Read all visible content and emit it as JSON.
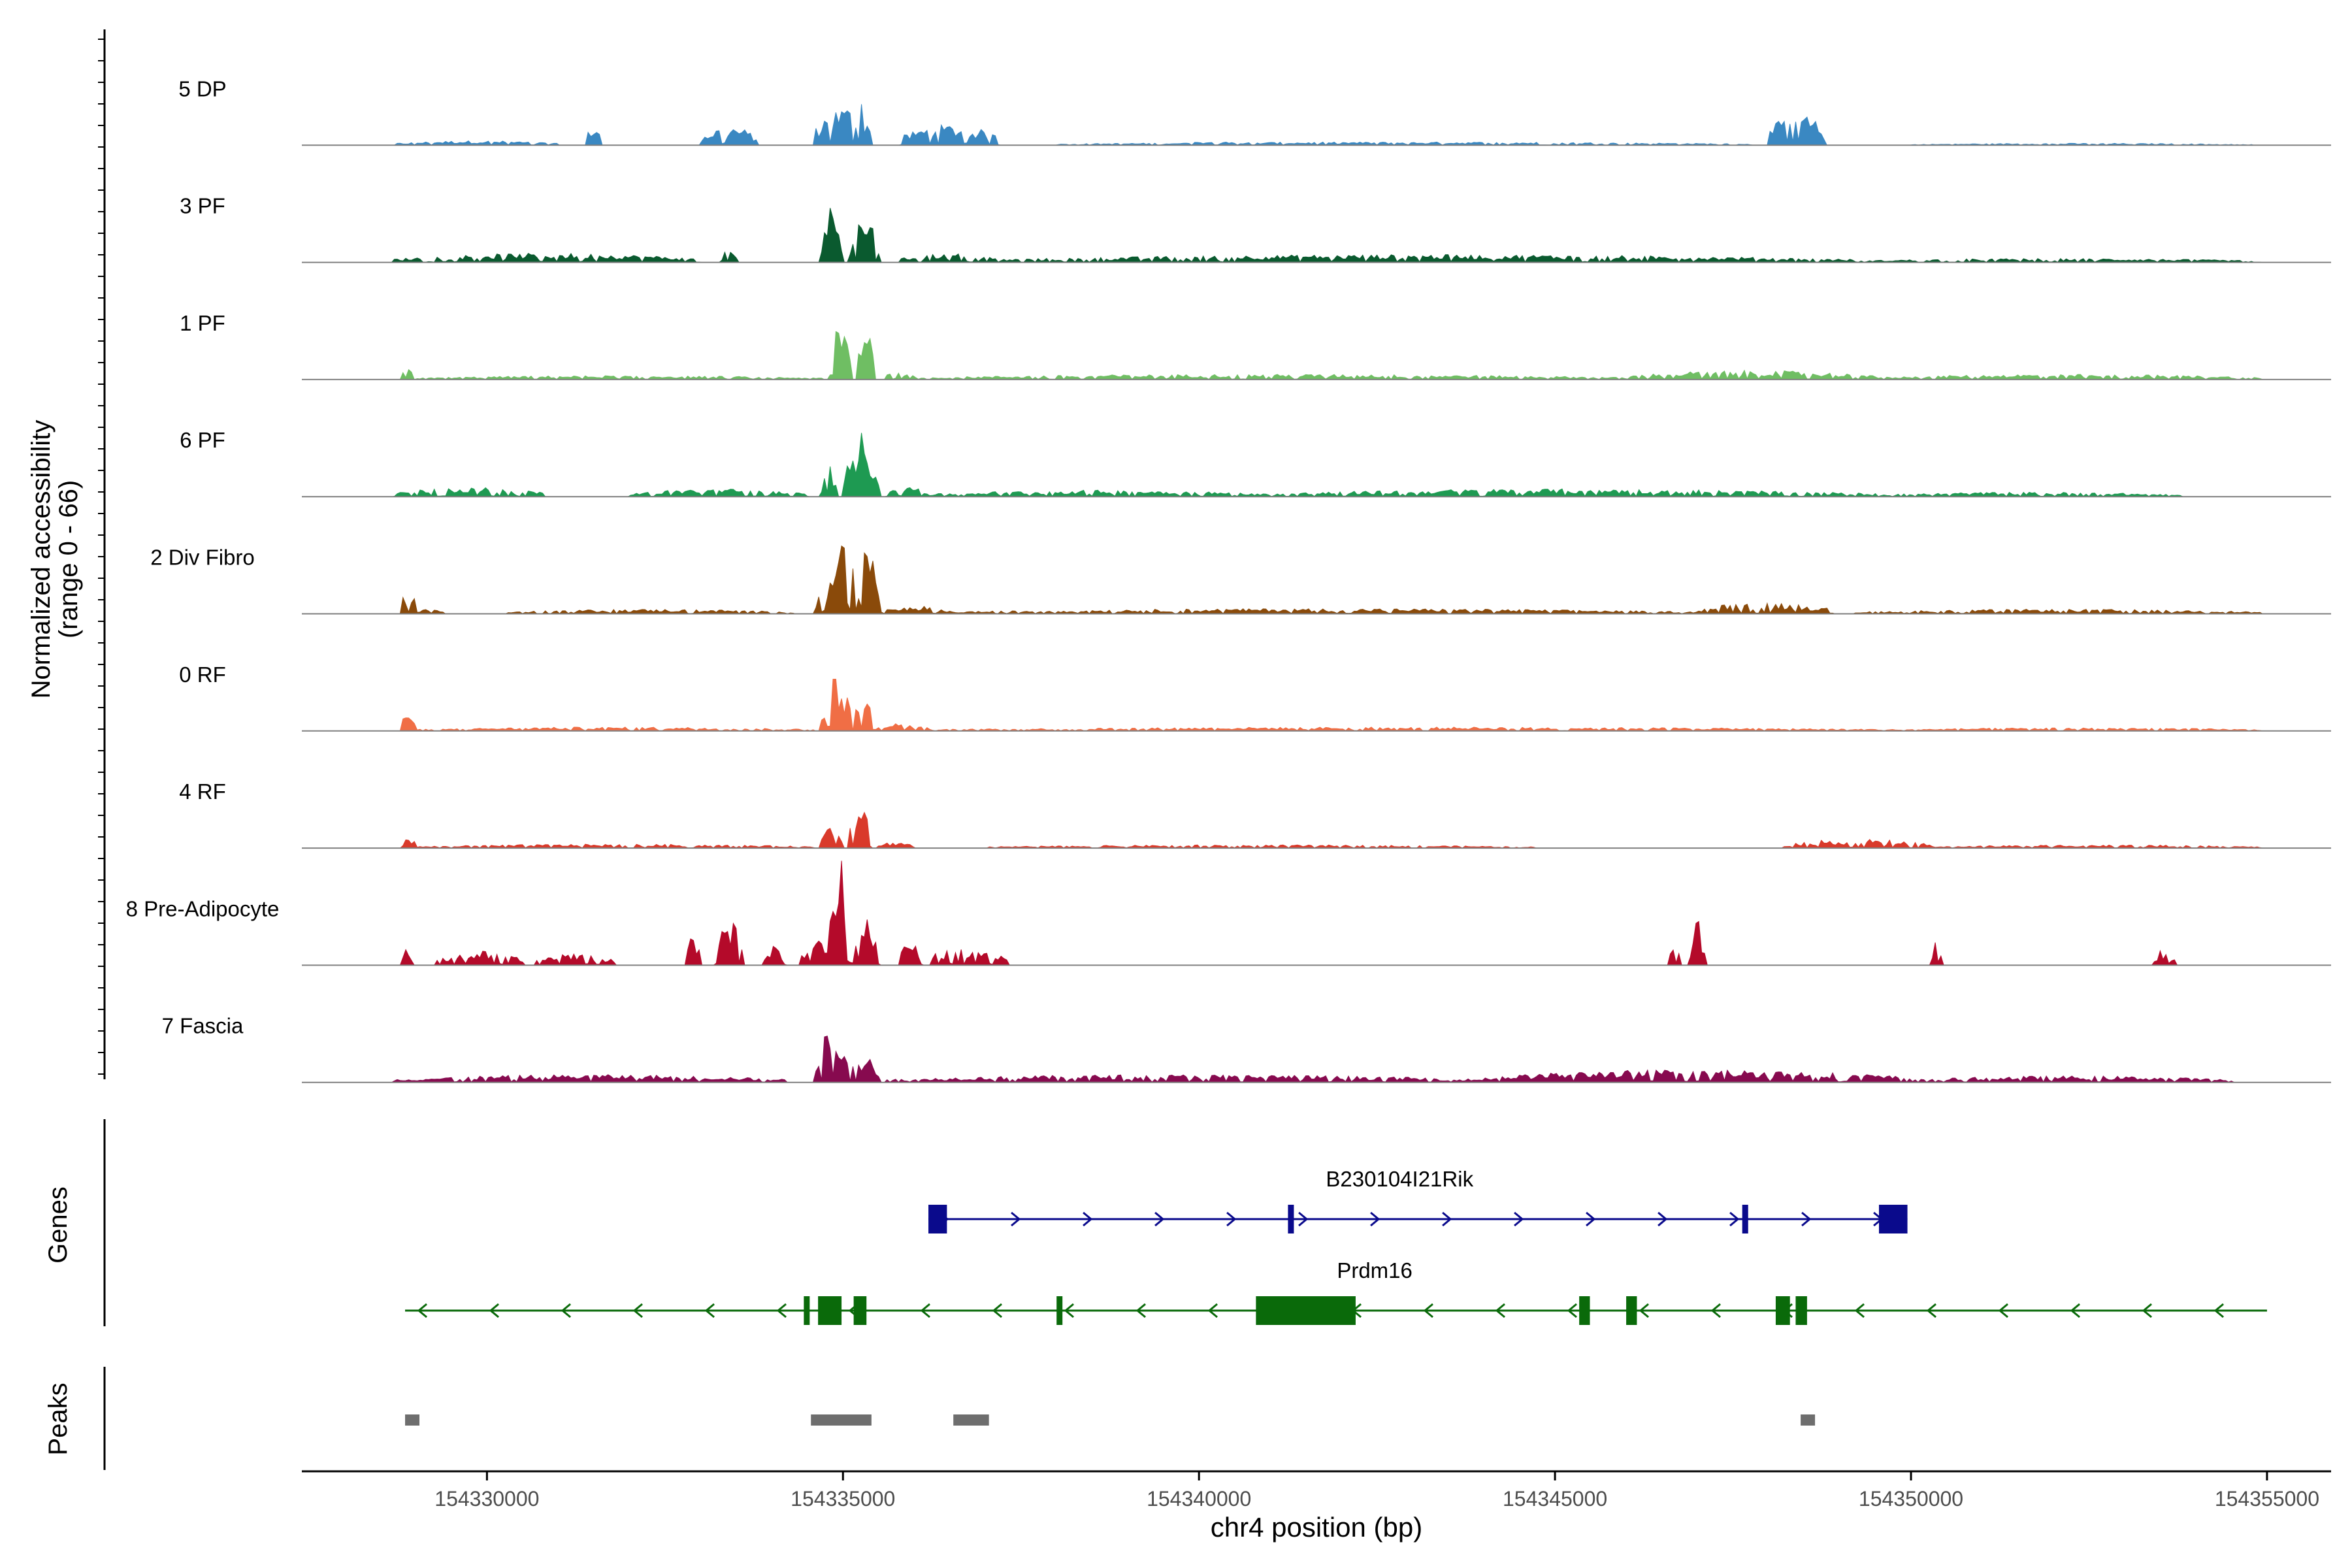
{
  "chart_data": {
    "type": "area",
    "title": "",
    "ylabel": "Normalized accessibility",
    "ylabel_range": "(range 0 - 66)",
    "y_range": [
      0,
      66
    ],
    "xlabel": "chr4 position (bp)",
    "x_range": [
      154327400,
      154355900
    ],
    "x_ticks": [
      154330000,
      154335000,
      154340000,
      154345000,
      154350000,
      154355000
    ],
    "x_tick_labels": [
      "154330000",
      "154335000",
      "154340000",
      "154345000",
      "154350000",
      "154355000"
    ],
    "genes_label": "Genes",
    "peaks_label": "Peaks",
    "series": [
      {
        "name": "5 DP",
        "color": "#3a88c2",
        "profile": [
          [
            154328700,
            154331000,
            7
          ],
          [
            154331400,
            154331600,
            34
          ],
          [
            154333000,
            154333800,
            30
          ],
          [
            154334600,
            154335400,
            60
          ],
          [
            154335200,
            154335300,
            85
          ],
          [
            154335800,
            154337200,
            32
          ],
          [
            154339800,
            154340600,
            6
          ],
          [
            154348000,
            154348800,
            50
          ],
          [
            154338000,
            154347800,
            5
          ],
          [
            154350000,
            154354800,
            3
          ]
        ]
      },
      {
        "name": "3 PF",
        "color": "#0a5a2f",
        "profile": [
          [
            154328700,
            154333000,
            14
          ],
          [
            154333300,
            154333500,
            20
          ],
          [
            154334700,
            154335000,
            90
          ],
          [
            154335100,
            154335500,
            75
          ],
          [
            154335800,
            154337200,
            14
          ],
          [
            154337200,
            154349200,
            12
          ],
          [
            154349200,
            154354900,
            6
          ]
        ]
      },
      {
        "name": "1 PF",
        "color": "#6fbe63",
        "profile": [
          [
            154328800,
            154328950,
            40
          ],
          [
            154329000,
            154334700,
            6
          ],
          [
            154334800,
            154335100,
            100
          ],
          [
            154335200,
            154335450,
            95
          ],
          [
            154335600,
            154336000,
            16
          ],
          [
            154336000,
            154346000,
            8
          ],
          [
            154346000,
            154349500,
            14
          ],
          [
            154349500,
            154354900,
            8
          ]
        ]
      },
      {
        "name": "6 PF",
        "color": "#1e9a52",
        "profile": [
          [
            154328700,
            154330800,
            15
          ],
          [
            154332000,
            154334500,
            12
          ],
          [
            154334700,
            154334900,
            50
          ],
          [
            154335000,
            154335500,
            100
          ],
          [
            154335600,
            154336200,
            18
          ],
          [
            154336200,
            154341000,
            10
          ],
          [
            154341000,
            154349500,
            12
          ],
          [
            154349500,
            154353800,
            7
          ]
        ]
      },
      {
        "name": "2 Div Fibro",
        "color": "#8a4a0a",
        "profile": [
          [
            154328800,
            154329000,
            45
          ],
          [
            154329000,
            154329400,
            8
          ],
          [
            154330300,
            154334300,
            7
          ],
          [
            154334600,
            154334800,
            40
          ],
          [
            154334800,
            154335200,
            130
          ],
          [
            154335200,
            154335500,
            110
          ],
          [
            154335500,
            154336500,
            12
          ],
          [
            154336500,
            154347000,
            8
          ],
          [
            154347000,
            154348900,
            18
          ],
          [
            154349200,
            154354900,
            7
          ]
        ]
      },
      {
        "name": "0 RF",
        "color": "#f06e45",
        "profile": [
          [
            154328800,
            154329000,
            35
          ],
          [
            154329000,
            154334600,
            6
          ],
          [
            154334700,
            154335100,
            90
          ],
          [
            154335150,
            154335400,
            70
          ],
          [
            154335400,
            154336200,
            12
          ],
          [
            154336200,
            154349800,
            6
          ],
          [
            154349800,
            154354900,
            5
          ]
        ]
      },
      {
        "name": "4 RF",
        "color": "#d93a2b",
        "profile": [
          [
            154328800,
            154329000,
            18
          ],
          [
            154329000,
            154334600,
            6
          ],
          [
            154334700,
            154335000,
            50
          ],
          [
            154335100,
            154335400,
            90
          ],
          [
            154335500,
            154336000,
            10
          ],
          [
            154337000,
            154344700,
            5
          ],
          [
            154348200,
            154350300,
            14
          ],
          [
            154350300,
            154354900,
            5
          ]
        ]
      },
      {
        "name": "8 Pre-Adipocyte",
        "color": "#b40a2a",
        "profile": [
          [
            154328800,
            154328950,
            25
          ],
          [
            154329300,
            154330500,
            22
          ],
          [
            154330700,
            154331800,
            20
          ],
          [
            154332800,
            154333000,
            50
          ],
          [
            154333200,
            154333600,
            70
          ],
          [
            154333900,
            154334200,
            30
          ],
          [
            154334400,
            154334800,
            40
          ],
          [
            154334800,
            154335100,
            180
          ],
          [
            154335100,
            154335500,
            80
          ],
          [
            154335800,
            154336100,
            45
          ],
          [
            154336200,
            154337300,
            30
          ],
          [
            154346600,
            154346750,
            35
          ],
          [
            154346900,
            154347100,
            70
          ],
          [
            154346900,
            154347100,
            45
          ],
          [
            154350300,
            154350450,
            40
          ],
          [
            154353400,
            154353700,
            25
          ]
        ]
      },
      {
        "name": "7 Fascia",
        "color": "#870a4f",
        "profile": [
          [
            154328700,
            154334200,
            12
          ],
          [
            154334600,
            154335100,
            80
          ],
          [
            154335100,
            154335500,
            50
          ],
          [
            154335600,
            154344000,
            12
          ],
          [
            154344000,
            154350000,
            20
          ],
          [
            154350000,
            154354500,
            10
          ]
        ]
      }
    ],
    "genes": [
      {
        "name": "B230104I21Rik",
        "strand": "+",
        "color": "#0a0a8c",
        "start": 154336200,
        "end": 154349950,
        "exons": [
          [
            154336200,
            154336460,
            "big"
          ],
          [
            154341250,
            154341330,
            "thin"
          ],
          [
            154347630,
            154347680,
            "thin"
          ],
          [
            154349550,
            154349950,
            "big"
          ]
        ]
      },
      {
        "name": "Prdm16",
        "strand": "-",
        "color": "#0a6a0a",
        "start": 154328850,
        "end": 154355000,
        "exons": [
          [
            154334450,
            154334520,
            "thin"
          ],
          [
            154334650,
            154334980,
            "big"
          ],
          [
            154335150,
            154335330,
            "big"
          ],
          [
            154338000,
            154338080,
            "thin"
          ],
          [
            154340800,
            154342200,
            "big"
          ],
          [
            154345340,
            154345490,
            "big"
          ],
          [
            154346000,
            154346150,
            "big"
          ],
          [
            154348100,
            154348300,
            "big"
          ],
          [
            154348380,
            154348540,
            "big"
          ]
        ]
      }
    ],
    "peaks": [
      [
        154328850,
        154329050
      ],
      [
        154334550,
        154335400
      ],
      [
        154336550,
        154337050
      ],
      [
        154348450,
        154348650
      ]
    ]
  }
}
